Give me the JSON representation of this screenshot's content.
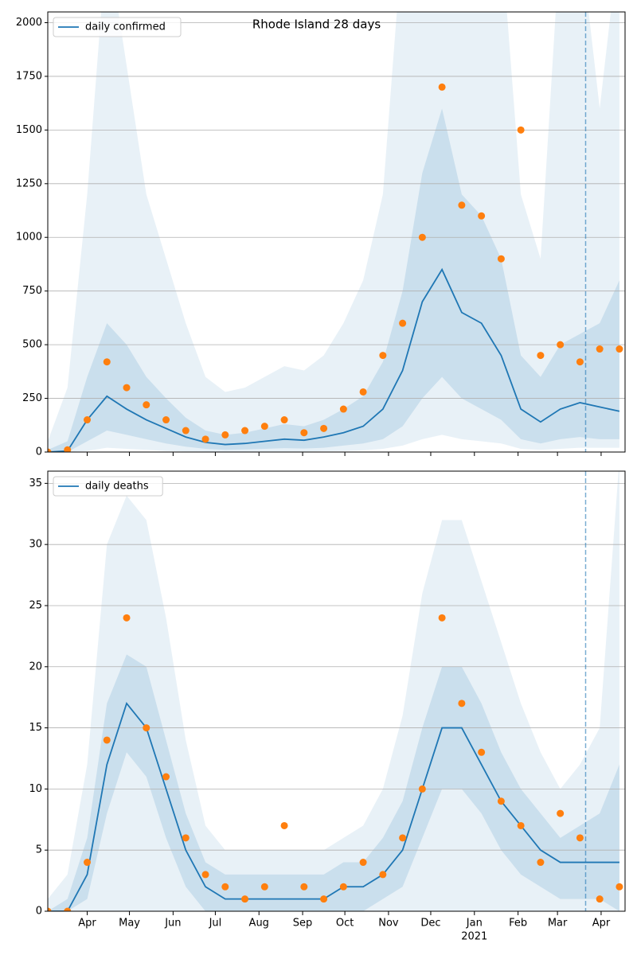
{
  "chart_data": [
    {
      "type": "line",
      "title": "Rhode Island 28 days",
      "legend": "upper left",
      "grid": true,
      "show_xtick_labels": false,
      "x": [
        0,
        14,
        28,
        42,
        56,
        70,
        84,
        98,
        112,
        126,
        140,
        154,
        168,
        182,
        196,
        210,
        224,
        238,
        252,
        266,
        280,
        294,
        308,
        322,
        336,
        350,
        364,
        378,
        392,
        406
      ],
      "series": [
        {
          "name": "daily confirmed",
          "color": "#1f77b4",
          "values": [
            0,
            5,
            150,
            260,
            200,
            150,
            110,
            70,
            45,
            35,
            40,
            50,
            60,
            55,
            70,
            90,
            120,
            200,
            380,
            700,
            850,
            650,
            600,
            450,
            200,
            140,
            200,
            230,
            210,
            190
          ]
        }
      ],
      "points": {
        "color": "#ff7f0e",
        "values": [
          0,
          10,
          150,
          420,
          300,
          220,
          150,
          100,
          60,
          80,
          100,
          120,
          150,
          90,
          110,
          200,
          280,
          450,
          600,
          1000,
          1700,
          1150,
          1100,
          900,
          1500,
          450,
          500,
          420,
          480,
          480
        ]
      },
      "bands": [
        {
          "color": "#1f77b4",
          "opacity": 0.1,
          "lower": [
            0,
            0,
            5,
            20,
            15,
            10,
            5,
            3,
            2,
            2,
            2,
            3,
            3,
            3,
            4,
            5,
            8,
            15,
            30,
            60,
            80,
            60,
            50,
            40,
            15,
            10,
            15,
            20,
            20,
            20
          ],
          "upper": [
            50,
            300,
            1200,
            2400,
            1800,
            1200,
            900,
            600,
            350,
            280,
            300,
            350,
            400,
            380,
            450,
            600,
            800,
            1200,
            2400,
            2400,
            2400,
            2400,
            2400,
            2400,
            1200,
            900,
            2400,
            2400,
            1600,
            2400
          ]
        },
        {
          "color": "#1f77b4",
          "opacity": 0.15,
          "lower": [
            0,
            0,
            50,
            100,
            80,
            60,
            40,
            25,
            15,
            10,
            12,
            15,
            18,
            16,
            20,
            30,
            40,
            60,
            120,
            250,
            350,
            250,
            200,
            150,
            60,
            40,
            60,
            70,
            60,
            60
          ],
          "upper": [
            10,
            50,
            350,
            600,
            500,
            350,
            250,
            160,
            100,
            80,
            90,
            110,
            130,
            120,
            150,
            200,
            260,
            420,
            750,
            1300,
            1600,
            1200,
            1100,
            900,
            450,
            350,
            500,
            550,
            600,
            800
          ]
        }
      ],
      "vline": 382,
      "xlim": [
        0,
        410
      ],
      "ylim": [
        0,
        2050
      ],
      "yticks": [
        0,
        250,
        500,
        750,
        1000,
        1250,
        1500,
        1750,
        2000
      ],
      "xticks": [
        {
          "value": 28,
          "label": "Apr"
        },
        {
          "value": 58,
          "label": "May"
        },
        {
          "value": 89,
          "label": "Jun"
        },
        {
          "value": 119,
          "label": "Jul"
        },
        {
          "value": 150,
          "label": "Aug"
        },
        {
          "value": 181,
          "label": "Sep"
        },
        {
          "value": 211,
          "label": "Oct"
        },
        {
          "value": 242,
          "label": "Nov"
        },
        {
          "value": 272,
          "label": "Dec"
        },
        {
          "value": 303,
          "label": "Jan"
        },
        {
          "value": 334,
          "label": "Feb"
        },
        {
          "value": 362,
          "label": "Mar"
        },
        {
          "value": 393,
          "label": "Apr"
        }
      ]
    },
    {
      "type": "line",
      "legend": "upper left",
      "grid": true,
      "show_xtick_labels": true,
      "x": [
        0,
        14,
        28,
        42,
        56,
        70,
        84,
        98,
        112,
        126,
        140,
        154,
        168,
        182,
        196,
        210,
        224,
        238,
        252,
        266,
        280,
        294,
        308,
        322,
        336,
        350,
        364,
        378,
        392,
        406
      ],
      "series": [
        {
          "name": "daily deaths",
          "color": "#1f77b4",
          "values": [
            0,
            0,
            3,
            12,
            17,
            15,
            10,
            5,
            2,
            1,
            1,
            1,
            1,
            1,
            1,
            2,
            2,
            3,
            5,
            10,
            15,
            15,
            12,
            9,
            7,
            5,
            4,
            4,
            4,
            4
          ]
        }
      ],
      "points": {
        "color": "#ff7f0e",
        "values": [
          0,
          0,
          4,
          14,
          24,
          15,
          11,
          6,
          3,
          2,
          1,
          2,
          7,
          2,
          1,
          2,
          4,
          3,
          6,
          10,
          24,
          17,
          13,
          9,
          7,
          4,
          8,
          6,
          1,
          2
        ]
      },
      "bands": [
        {
          "color": "#1f77b4",
          "opacity": 0.1,
          "lower": [
            0,
            0,
            0,
            0,
            0,
            0,
            0,
            0,
            0,
            0,
            0,
            0,
            0,
            0,
            0,
            0,
            0,
            0,
            0,
            0,
            0,
            0,
            0,
            0,
            0,
            0,
            0,
            0,
            0,
            0
          ],
          "upper": [
            1,
            3,
            12,
            30,
            34,
            32,
            24,
            14,
            7,
            5,
            5,
            5,
            5,
            5,
            5,
            6,
            7,
            10,
            16,
            26,
            32,
            32,
            27,
            22,
            17,
            13,
            10,
            12,
            15,
            37
          ]
        },
        {
          "color": "#1f77b4",
          "opacity": 0.15,
          "lower": [
            0,
            0,
            1,
            8,
            13,
            11,
            6,
            2,
            0,
            0,
            0,
            0,
            0,
            0,
            0,
            0,
            0,
            1,
            2,
            6,
            10,
            10,
            8,
            5,
            3,
            2,
            1,
            1,
            1,
            0
          ],
          "upper": [
            0,
            1,
            6,
            17,
            21,
            20,
            14,
            8,
            4,
            3,
            3,
            3,
            3,
            3,
            3,
            4,
            4,
            6,
            9,
            15,
            20,
            20,
            17,
            13,
            10,
            8,
            6,
            7,
            8,
            12
          ]
        }
      ],
      "vline": 382,
      "xlim": [
        0,
        410
      ],
      "ylim": [
        0,
        36
      ],
      "yticks": [
        0,
        5,
        10,
        15,
        20,
        25,
        30,
        35
      ],
      "xticks": [
        {
          "value": 28,
          "label": "Apr"
        },
        {
          "value": 58,
          "label": "May"
        },
        {
          "value": 89,
          "label": "Jun"
        },
        {
          "value": 119,
          "label": "Jul"
        },
        {
          "value": 150,
          "label": "Aug"
        },
        {
          "value": 181,
          "label": "Sep"
        },
        {
          "value": 211,
          "label": "Oct"
        },
        {
          "value": 242,
          "label": "Nov"
        },
        {
          "value": 272,
          "label": "Dec"
        },
        {
          "value": 303,
          "label": "Jan"
        },
        {
          "value": 334,
          "label": "Feb"
        },
        {
          "value": 362,
          "label": "Mar"
        },
        {
          "value": 393,
          "label": "Apr"
        }
      ],
      "xtick_year": {
        "value": 303,
        "label": "2021"
      }
    }
  ]
}
